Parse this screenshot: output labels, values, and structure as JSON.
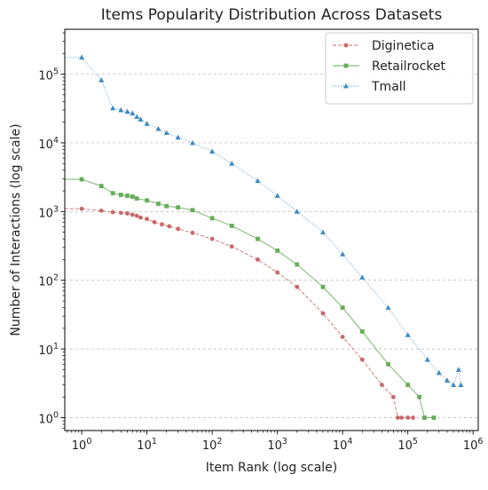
{
  "chart_data": {
    "type": "scatter",
    "title": "Items Popularity Distribution Across Datasets",
    "xlabel": "Item Rank (log scale)",
    "ylabel": "Number of Interactions (log scale)",
    "xscale": "log",
    "yscale": "log",
    "xlim": [
      0.55,
      1200000
    ],
    "ylim": [
      0.65,
      450000
    ],
    "grid": "y-dashed",
    "legend_position": "top-right",
    "x_ticks": [
      {
        "value": 1,
        "base": "10",
        "exp": "0"
      },
      {
        "value": 10,
        "base": "10",
        "exp": "1"
      },
      {
        "value": 100,
        "base": "10",
        "exp": "2"
      },
      {
        "value": 1000,
        "base": "10",
        "exp": "3"
      },
      {
        "value": 10000,
        "base": "10",
        "exp": "4"
      },
      {
        "value": 100000,
        "base": "10",
        "exp": "5"
      },
      {
        "value": 1000000,
        "base": "10",
        "exp": "6"
      }
    ],
    "y_ticks": [
      {
        "value": 1,
        "base": "10",
        "exp": "0"
      },
      {
        "value": 10,
        "base": "10",
        "exp": "1"
      },
      {
        "value": 100,
        "base": "10",
        "exp": "2"
      },
      {
        "value": 1000,
        "base": "10",
        "exp": "3"
      },
      {
        "value": 10000,
        "base": "10",
        "exp": "4"
      },
      {
        "value": 100000,
        "base": "10",
        "exp": "5"
      }
    ],
    "series": [
      {
        "name": "Diginetica",
        "color": "#c9686a",
        "marker": "circle",
        "line_style": "dashed",
        "x": [
          1,
          2,
          3,
          4,
          5,
          6,
          7,
          8,
          10,
          13,
          17,
          22,
          30,
          50,
          100,
          200,
          500,
          1000,
          2000,
          5000,
          10000,
          20000,
          40000,
          60000,
          70000,
          80000,
          100000,
          120000
        ],
        "y": [
          1100,
          1030,
          980,
          960,
          940,
          900,
          870,
          820,
          780,
          700,
          650,
          610,
          560,
          490,
          400,
          310,
          200,
          130,
          80,
          33,
          15,
          7,
          3,
          2,
          1,
          1,
          1,
          1
        ]
      },
      {
        "name": "Retailrocket",
        "color": "#67ac5b",
        "marker": "square",
        "line_style": "solid",
        "x": [
          1,
          2,
          3,
          4,
          5,
          6,
          7,
          10,
          15,
          20,
          30,
          50,
          100,
          200,
          500,
          1000,
          2000,
          5000,
          10000,
          20000,
          50000,
          100000,
          150000,
          180000,
          250000
        ],
        "y": [
          2950,
          2350,
          1850,
          1750,
          1700,
          1650,
          1550,
          1450,
          1300,
          1200,
          1150,
          1050,
          800,
          620,
          400,
          270,
          170,
          80,
          40,
          18,
          6,
          3,
          2,
          1,
          1
        ]
      },
      {
        "name": "Tmall",
        "color": "#3c8ac2",
        "marker": "triangle",
        "line_style": "dotted",
        "x": [
          1,
          2,
          3,
          4,
          5,
          6,
          7,
          8,
          10,
          15,
          20,
          30,
          50,
          100,
          200,
          500,
          1000,
          2000,
          5000,
          10000,
          20000,
          50000,
          100000,
          200000,
          300000,
          400000,
          500000,
          600000,
          650000
        ],
        "y": [
          175000,
          82000,
          32000,
          30000,
          28500,
          27000,
          24000,
          22000,
          19000,
          16000,
          14000,
          12000,
          10000,
          7500,
          5000,
          2800,
          1700,
          1000,
          500,
          240,
          110,
          40,
          16,
          7,
          4.5,
          3.5,
          3,
          5,
          3
        ]
      }
    ]
  }
}
